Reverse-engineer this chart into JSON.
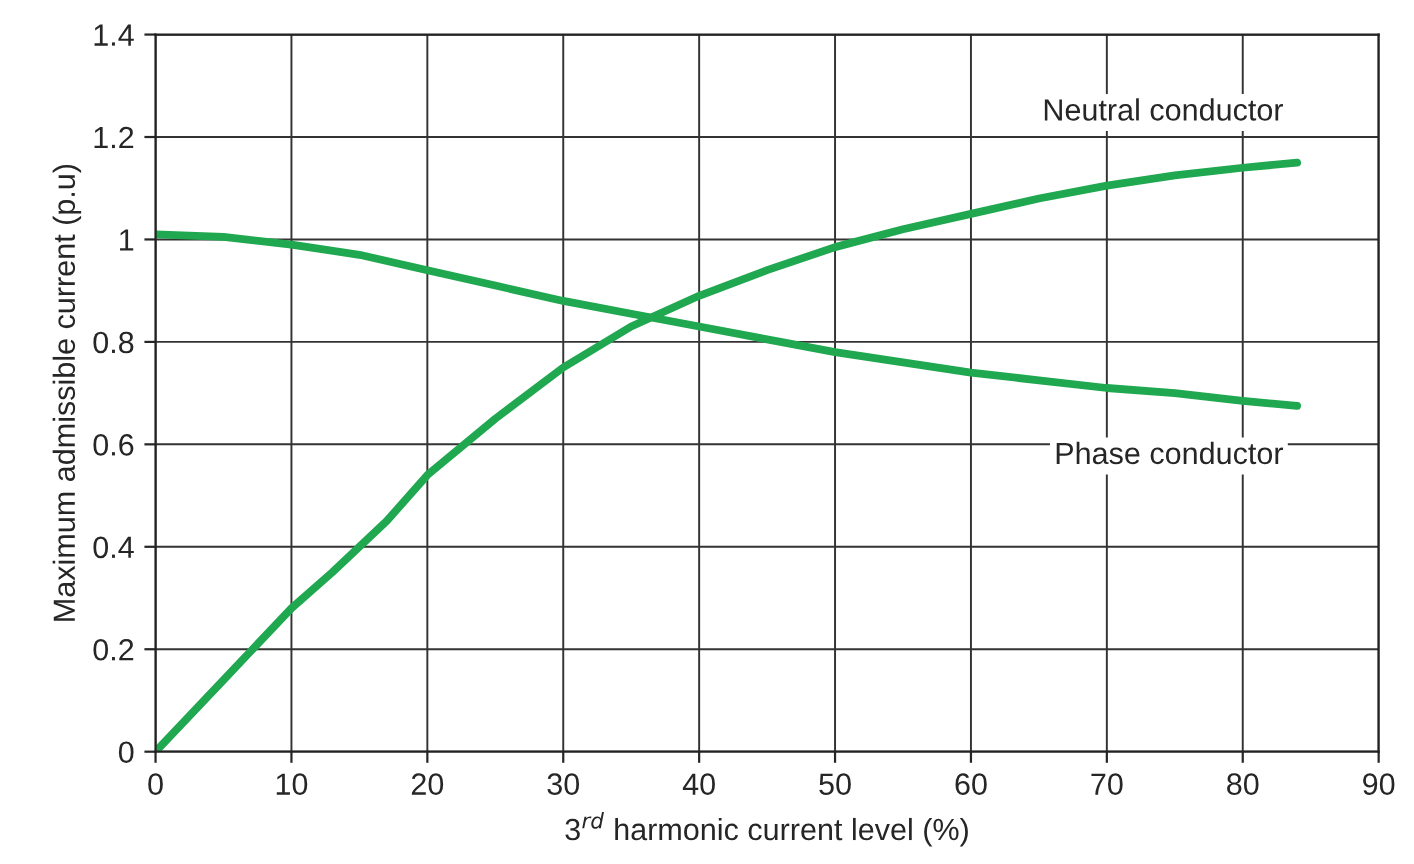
{
  "chart_data": {
    "type": "line",
    "xlabel": "3$^{rd}$ harmonic current level (%)",
    "ylabel": "Maximum admissible current (p.u)",
    "xlim": [
      0,
      90
    ],
    "xticks": [
      0,
      10,
      20,
      30,
      40,
      50,
      60,
      70,
      80,
      90
    ],
    "ylim": [
      0,
      1.4
    ],
    "yticks": [
      {
        "value": 0,
        "label": "0"
      },
      0.2,
      0.4,
      0.6,
      0.8,
      {
        "value": 1,
        "label": "1"
      },
      1.2,
      1.4
    ],
    "grid": true,
    "legend": false,
    "marker": "none",
    "line_style": "solid",
    "series": [
      {
        "name": "Neutral conductor",
        "color": "#1fa84f",
        "x": [
          0,
          5,
          10,
          13,
          17,
          20,
          25,
          30,
          35,
          40,
          45,
          50,
          55,
          60,
          65,
          70,
          75,
          80,
          84
        ],
        "values": [
          0,
          0.14,
          0.28,
          0.35,
          0.45,
          0.54,
          0.65,
          0.75,
          0.83,
          0.89,
          0.94,
          0.985,
          1.02,
          1.05,
          1.08,
          1.105,
          1.125,
          1.14,
          1.15
        ]
      },
      {
        "name": "Phase conductor",
        "color": "#1fa84f",
        "x": [
          0,
          5,
          10,
          15,
          20,
          25,
          30,
          35,
          40,
          45,
          50,
          55,
          60,
          65,
          70,
          75,
          80,
          84
        ],
        "values": [
          1.01,
          1.005,
          0.99,
          0.97,
          0.94,
          0.91,
          0.88,
          0.855,
          0.83,
          0.805,
          0.78,
          0.76,
          0.74,
          0.725,
          0.71,
          0.7,
          0.685,
          0.675
        ]
      }
    ]
  }
}
